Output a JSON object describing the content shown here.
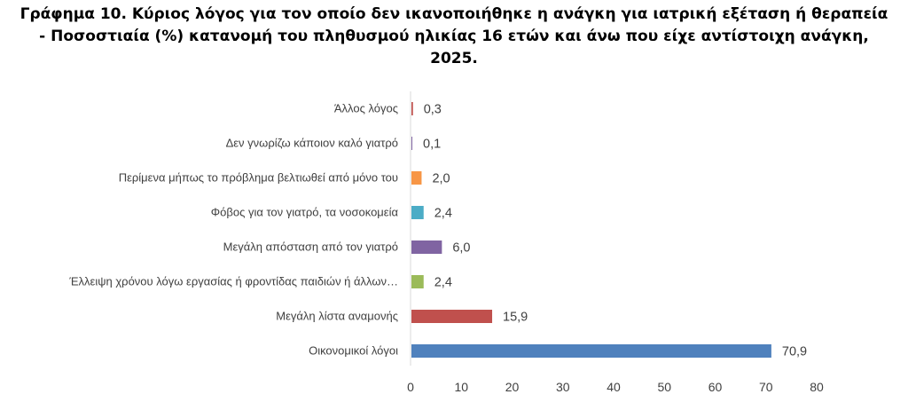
{
  "chart_data": {
    "type": "bar",
    "orientation": "horizontal",
    "title_lines": [
      "Γράφημα 10. Κύριος λόγος για τον οποίο δεν ικανοποιήθηκε η ανάγκη για ιατρική εξέταση ή θεραπεία",
      "- Ποσοστιαία (%) κατανομή του πληθυσμού ηλικίας 16 ετών και άνω που είχε αντίστοιχη ανάγκη,",
      "2025."
    ],
    "categories": [
      "Άλλος λόγος",
      "Δεν γνωρίζω κάποιον καλό γιατρό",
      "Περίμενα μήπως το πρόβλημα βελτιωθεί από μόνο του",
      "Φόβος για τον γιατρό, τα νοσοκομεία",
      "Μεγάλη απόσταση από τον γιατρό",
      "Έλλειψη χρόνου λόγω εργασίας ή φροντίδας  παιδιών ή άλλων…",
      "Μεγάλη λίστα αναμονής",
      "Οικονομικοί λόγοι"
    ],
    "values": [
      0.3,
      0.1,
      2.0,
      2.4,
      6.0,
      2.4,
      15.9,
      70.9
    ],
    "value_labels": [
      "0,3",
      "0,1",
      "2,0",
      "2,4",
      "6,0",
      "2,4",
      "15,9",
      "70,9"
    ],
    "colors": [
      "#c0504d",
      "#8064a2",
      "#f79646",
      "#4bacc6",
      "#8064a2",
      "#9bbb59",
      "#c0504d",
      "#4f81bd"
    ],
    "xlim": [
      0,
      80
    ],
    "xticks": [
      0,
      10,
      20,
      30,
      40,
      50,
      60,
      70,
      80
    ],
    "grid": false,
    "legend": "none"
  }
}
